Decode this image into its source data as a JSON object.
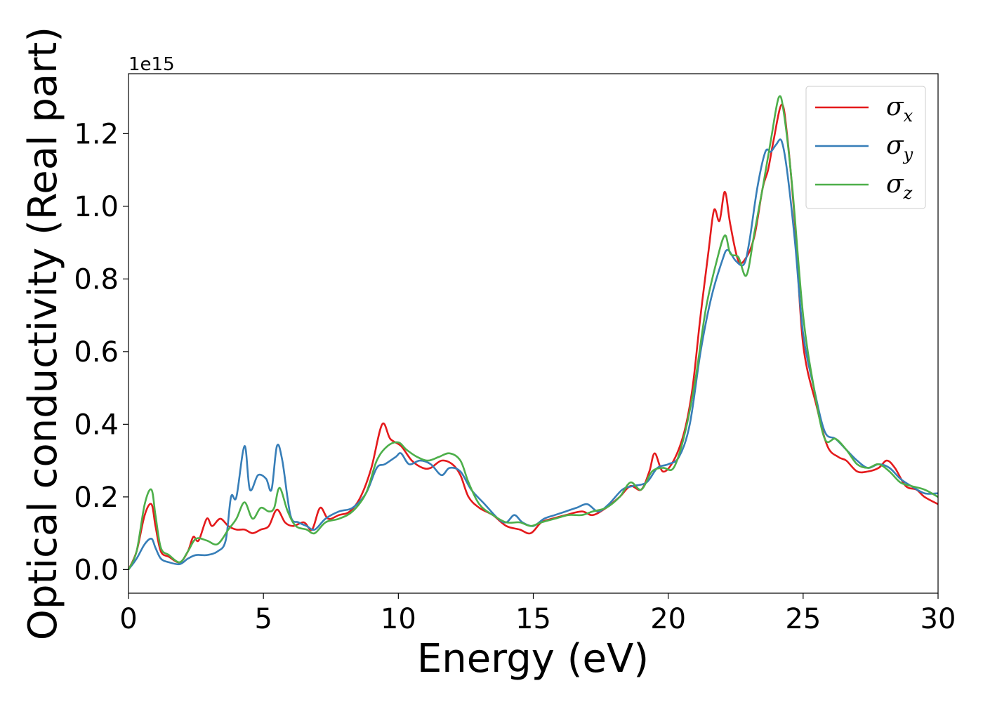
{
  "chart_data": {
    "type": "line",
    "xlabel": "Energy (eV)",
    "ylabel": "Optical conductivity (Real part)",
    "y_offset_label": "1e15",
    "xlim": [
      0,
      30
    ],
    "ylim": [
      -0.065,
      1.365
    ],
    "xticks": [
      0,
      5,
      10,
      15,
      20,
      25,
      30
    ],
    "xtick_labels": [
      "0",
      "5",
      "10",
      "15",
      "20",
      "25",
      "30"
    ],
    "yticks": [
      0.0,
      0.2,
      0.4,
      0.6,
      0.8,
      1.0,
      1.2
    ],
    "ytick_labels": [
      "0.0",
      "0.2",
      "0.4",
      "0.6",
      "0.8",
      "1.0",
      "1.2"
    ],
    "grid": false,
    "legend_position": "top-right",
    "series": [
      {
        "name": "σx",
        "symbol": "σ",
        "subscript": "x",
        "color": "#e41a1c",
        "points": [
          [
            0,
            0.0
          ],
          [
            0.3,
            0.05
          ],
          [
            0.6,
            0.15
          ],
          [
            0.85,
            0.18
          ],
          [
            1.0,
            0.12
          ],
          [
            1.2,
            0.05
          ],
          [
            1.5,
            0.035
          ],
          [
            1.9,
            0.02
          ],
          [
            2.2,
            0.05
          ],
          [
            2.4,
            0.09
          ],
          [
            2.6,
            0.08
          ],
          [
            2.9,
            0.14
          ],
          [
            3.1,
            0.12
          ],
          [
            3.4,
            0.14
          ],
          [
            3.7,
            0.12
          ],
          [
            4.0,
            0.11
          ],
          [
            4.3,
            0.11
          ],
          [
            4.6,
            0.1
          ],
          [
            4.9,
            0.11
          ],
          [
            5.2,
            0.12
          ],
          [
            5.5,
            0.165
          ],
          [
            5.8,
            0.13
          ],
          [
            6.1,
            0.12
          ],
          [
            6.5,
            0.13
          ],
          [
            6.8,
            0.11
          ],
          [
            7.1,
            0.17
          ],
          [
            7.4,
            0.14
          ],
          [
            7.8,
            0.15
          ],
          [
            8.2,
            0.16
          ],
          [
            8.6,
            0.2
          ],
          [
            9.0,
            0.28
          ],
          [
            9.4,
            0.4
          ],
          [
            9.7,
            0.36
          ],
          [
            10.1,
            0.34
          ],
          [
            10.5,
            0.3
          ],
          [
            10.9,
            0.28
          ],
          [
            11.2,
            0.28
          ],
          [
            11.6,
            0.3
          ],
          [
            12.0,
            0.29
          ],
          [
            12.3,
            0.26
          ],
          [
            12.6,
            0.2
          ],
          [
            13.0,
            0.17
          ],
          [
            13.5,
            0.15
          ],
          [
            14.0,
            0.12
          ],
          [
            14.5,
            0.11
          ],
          [
            14.9,
            0.1
          ],
          [
            15.3,
            0.13
          ],
          [
            15.7,
            0.14
          ],
          [
            16.2,
            0.15
          ],
          [
            16.8,
            0.16
          ],
          [
            17.2,
            0.15
          ],
          [
            17.7,
            0.17
          ],
          [
            18.2,
            0.2
          ],
          [
            18.6,
            0.23
          ],
          [
            19.0,
            0.22
          ],
          [
            19.3,
            0.27
          ],
          [
            19.5,
            0.32
          ],
          [
            19.8,
            0.27
          ],
          [
            20.2,
            0.3
          ],
          [
            20.6,
            0.38
          ],
          [
            20.9,
            0.5
          ],
          [
            21.2,
            0.7
          ],
          [
            21.5,
            0.88
          ],
          [
            21.7,
            0.99
          ],
          [
            21.9,
            0.96
          ],
          [
            22.1,
            1.04
          ],
          [
            22.3,
            0.95
          ],
          [
            22.6,
            0.85
          ],
          [
            22.9,
            0.86
          ],
          [
            23.2,
            0.92
          ],
          [
            23.5,
            1.05
          ],
          [
            23.7,
            1.1
          ],
          [
            23.9,
            1.18
          ],
          [
            24.2,
            1.28
          ],
          [
            24.4,
            1.2
          ],
          [
            24.7,
            0.95
          ],
          [
            25.0,
            0.62
          ],
          [
            25.5,
            0.45
          ],
          [
            25.9,
            0.34
          ],
          [
            26.3,
            0.31
          ],
          [
            26.6,
            0.3
          ],
          [
            27.0,
            0.27
          ],
          [
            27.4,
            0.27
          ],
          [
            27.8,
            0.28
          ],
          [
            28.1,
            0.3
          ],
          [
            28.4,
            0.28
          ],
          [
            28.8,
            0.23
          ],
          [
            29.2,
            0.22
          ],
          [
            29.5,
            0.2
          ],
          [
            30.0,
            0.18
          ]
        ]
      },
      {
        "name": "σy",
        "symbol": "σ",
        "subscript": "y",
        "color": "#377eb8",
        "points": [
          [
            0,
            0.0
          ],
          [
            0.3,
            0.03
          ],
          [
            0.6,
            0.07
          ],
          [
            0.85,
            0.085
          ],
          [
            1.0,
            0.06
          ],
          [
            1.2,
            0.03
          ],
          [
            1.5,
            0.02
          ],
          [
            1.9,
            0.015
          ],
          [
            2.2,
            0.03
          ],
          [
            2.5,
            0.04
          ],
          [
            2.9,
            0.04
          ],
          [
            3.3,
            0.05
          ],
          [
            3.6,
            0.08
          ],
          [
            3.8,
            0.2
          ],
          [
            4.0,
            0.2
          ],
          [
            4.3,
            0.34
          ],
          [
            4.5,
            0.22
          ],
          [
            4.8,
            0.26
          ],
          [
            5.1,
            0.25
          ],
          [
            5.3,
            0.22
          ],
          [
            5.5,
            0.34
          ],
          [
            5.7,
            0.3
          ],
          [
            6.0,
            0.15
          ],
          [
            6.3,
            0.13
          ],
          [
            6.6,
            0.12
          ],
          [
            6.9,
            0.11
          ],
          [
            7.3,
            0.14
          ],
          [
            7.8,
            0.16
          ],
          [
            8.3,
            0.17
          ],
          [
            8.8,
            0.21
          ],
          [
            9.2,
            0.28
          ],
          [
            9.5,
            0.29
          ],
          [
            9.9,
            0.31
          ],
          [
            10.1,
            0.32
          ],
          [
            10.4,
            0.29
          ],
          [
            10.8,
            0.3
          ],
          [
            11.2,
            0.29
          ],
          [
            11.6,
            0.26
          ],
          [
            11.9,
            0.28
          ],
          [
            12.3,
            0.27
          ],
          [
            12.7,
            0.22
          ],
          [
            13.2,
            0.18
          ],
          [
            13.7,
            0.14
          ],
          [
            14.0,
            0.13
          ],
          [
            14.3,
            0.15
          ],
          [
            14.6,
            0.13
          ],
          [
            15.0,
            0.12
          ],
          [
            15.4,
            0.14
          ],
          [
            15.8,
            0.15
          ],
          [
            16.2,
            0.16
          ],
          [
            16.6,
            0.17
          ],
          [
            17.0,
            0.18
          ],
          [
            17.4,
            0.16
          ],
          [
            17.8,
            0.18
          ],
          [
            18.3,
            0.22
          ],
          [
            18.7,
            0.23
          ],
          [
            19.2,
            0.24
          ],
          [
            19.6,
            0.28
          ],
          [
            20.0,
            0.29
          ],
          [
            20.4,
            0.31
          ],
          [
            20.8,
            0.4
          ],
          [
            21.2,
            0.6
          ],
          [
            21.6,
            0.75
          ],
          [
            22.0,
            0.85
          ],
          [
            22.2,
            0.88
          ],
          [
            22.5,
            0.85
          ],
          [
            22.8,
            0.84
          ],
          [
            23.0,
            0.9
          ],
          [
            23.3,
            1.05
          ],
          [
            23.6,
            1.15
          ],
          [
            23.8,
            1.15
          ],
          [
            24.0,
            1.17
          ],
          [
            24.2,
            1.18
          ],
          [
            24.4,
            1.1
          ],
          [
            24.7,
            0.9
          ],
          [
            25.0,
            0.65
          ],
          [
            25.4,
            0.5
          ],
          [
            25.8,
            0.38
          ],
          [
            26.2,
            0.36
          ],
          [
            26.6,
            0.33
          ],
          [
            27.0,
            0.3
          ],
          [
            27.4,
            0.28
          ],
          [
            27.8,
            0.29
          ],
          [
            28.2,
            0.28
          ],
          [
            28.6,
            0.25
          ],
          [
            29.0,
            0.23
          ],
          [
            29.5,
            0.21
          ],
          [
            30.0,
            0.21
          ]
        ]
      },
      {
        "name": "σz",
        "symbol": "σ",
        "subscript": "z",
        "color": "#4daf4a",
        "points": [
          [
            0,
            0.0
          ],
          [
            0.3,
            0.05
          ],
          [
            0.6,
            0.18
          ],
          [
            0.85,
            0.22
          ],
          [
            1.0,
            0.15
          ],
          [
            1.2,
            0.06
          ],
          [
            1.5,
            0.04
          ],
          [
            1.9,
            0.02
          ],
          [
            2.2,
            0.05
          ],
          [
            2.5,
            0.085
          ],
          [
            2.9,
            0.08
          ],
          [
            3.3,
            0.07
          ],
          [
            3.7,
            0.11
          ],
          [
            4.0,
            0.14
          ],
          [
            4.3,
            0.185
          ],
          [
            4.6,
            0.14
          ],
          [
            4.9,
            0.17
          ],
          [
            5.2,
            0.16
          ],
          [
            5.4,
            0.17
          ],
          [
            5.6,
            0.225
          ],
          [
            5.9,
            0.16
          ],
          [
            6.2,
            0.12
          ],
          [
            6.6,
            0.11
          ],
          [
            6.9,
            0.1
          ],
          [
            7.3,
            0.13
          ],
          [
            7.8,
            0.14
          ],
          [
            8.3,
            0.16
          ],
          [
            8.8,
            0.21
          ],
          [
            9.2,
            0.3
          ],
          [
            9.6,
            0.34
          ],
          [
            10.0,
            0.35
          ],
          [
            10.3,
            0.33
          ],
          [
            10.7,
            0.31
          ],
          [
            11.1,
            0.3
          ],
          [
            11.5,
            0.31
          ],
          [
            11.9,
            0.32
          ],
          [
            12.3,
            0.3
          ],
          [
            12.6,
            0.24
          ],
          [
            13.0,
            0.18
          ],
          [
            13.5,
            0.15
          ],
          [
            14.0,
            0.13
          ],
          [
            14.5,
            0.13
          ],
          [
            14.9,
            0.12
          ],
          [
            15.3,
            0.13
          ],
          [
            15.8,
            0.14
          ],
          [
            16.3,
            0.15
          ],
          [
            16.8,
            0.15
          ],
          [
            17.2,
            0.16
          ],
          [
            17.7,
            0.17
          ],
          [
            18.2,
            0.2
          ],
          [
            18.6,
            0.24
          ],
          [
            19.0,
            0.22
          ],
          [
            19.4,
            0.27
          ],
          [
            19.8,
            0.28
          ],
          [
            20.2,
            0.28
          ],
          [
            20.6,
            0.37
          ],
          [
            21.0,
            0.52
          ],
          [
            21.4,
            0.72
          ],
          [
            21.8,
            0.85
          ],
          [
            22.1,
            0.92
          ],
          [
            22.3,
            0.87
          ],
          [
            22.6,
            0.86
          ],
          [
            22.9,
            0.81
          ],
          [
            23.2,
            0.93
          ],
          [
            23.5,
            1.05
          ],
          [
            23.8,
            1.18
          ],
          [
            24.1,
            1.3
          ],
          [
            24.3,
            1.25
          ],
          [
            24.6,
            1.05
          ],
          [
            25.0,
            0.7
          ],
          [
            25.4,
            0.5
          ],
          [
            25.8,
            0.36
          ],
          [
            26.2,
            0.36
          ],
          [
            26.6,
            0.33
          ],
          [
            27.0,
            0.29
          ],
          [
            27.4,
            0.28
          ],
          [
            27.8,
            0.29
          ],
          [
            28.2,
            0.27
          ],
          [
            28.6,
            0.24
          ],
          [
            29.0,
            0.23
          ],
          [
            29.5,
            0.22
          ],
          [
            30.0,
            0.2
          ]
        ]
      }
    ]
  }
}
